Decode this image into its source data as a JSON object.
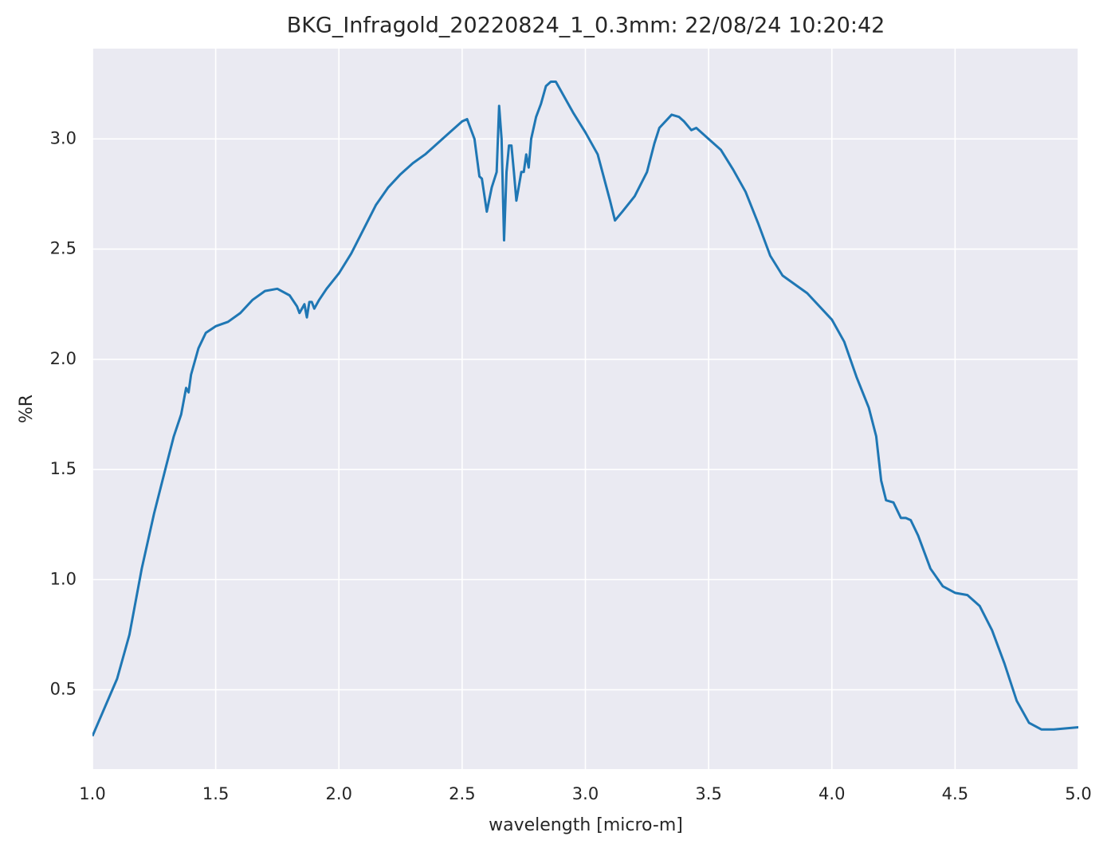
{
  "chart_data": {
    "type": "line",
    "title": "BKG_Infragold_20220824_1_0.3mm:  22/08/24 10:20:42",
    "xlabel": "wavelength [micro-m]",
    "ylabel": "%R",
    "color": "#1f77b4",
    "grid": true,
    "xlim": [
      1.0,
      5.0
    ],
    "ylim": [
      0.14,
      3.41
    ],
    "xticks": [
      {
        "value": 1,
        "label": "1.0"
      },
      1.5,
      {
        "value": 2,
        "label": "2.0"
      },
      2.5,
      {
        "value": 3,
        "label": "3.0"
      },
      3.5,
      {
        "value": 4,
        "label": "4.0"
      },
      4.5,
      {
        "value": 5,
        "label": "5.0"
      }
    ],
    "yticks": [
      0.5,
      {
        "value": 1,
        "label": "1.0"
      },
      1.5,
      {
        "value": 2,
        "label": "2.0"
      },
      2.5,
      {
        "value": 3,
        "label": "3.0"
      }
    ],
    "x": [
      1.0,
      1.05,
      1.1,
      1.15,
      1.2,
      1.25,
      1.3,
      1.33,
      1.36,
      1.38,
      1.39,
      1.4,
      1.43,
      1.46,
      1.5,
      1.55,
      1.6,
      1.65,
      1.7,
      1.75,
      1.8,
      1.83,
      1.84,
      1.86,
      1.87,
      1.88,
      1.89,
      1.9,
      1.92,
      1.95,
      2.0,
      2.05,
      2.1,
      2.15,
      2.2,
      2.25,
      2.3,
      2.35,
      2.4,
      2.45,
      2.5,
      2.52,
      2.55,
      2.57,
      2.58,
      2.6,
      2.62,
      2.64,
      2.65,
      2.66,
      2.67,
      2.68,
      2.69,
      2.7,
      2.71,
      2.72,
      2.74,
      2.75,
      2.76,
      2.77,
      2.78,
      2.8,
      2.82,
      2.84,
      2.86,
      2.88,
      2.9,
      2.95,
      3.0,
      3.05,
      3.1,
      3.12,
      3.15,
      3.2,
      3.25,
      3.28,
      3.3,
      3.35,
      3.38,
      3.4,
      3.43,
      3.45,
      3.5,
      3.55,
      3.6,
      3.65,
      3.7,
      3.75,
      3.8,
      3.9,
      4.0,
      4.05,
      4.1,
      4.15,
      4.18,
      4.2,
      4.22,
      4.25,
      4.28,
      4.3,
      4.32,
      4.35,
      4.4,
      4.45,
      4.5,
      4.55,
      4.6,
      4.65,
      4.7,
      4.75,
      4.8,
      4.85,
      4.9,
      5.0
    ],
    "values": [
      0.29,
      0.42,
      0.55,
      0.75,
      1.05,
      1.3,
      1.52,
      1.65,
      1.75,
      1.87,
      1.85,
      1.93,
      2.05,
      2.12,
      2.15,
      2.17,
      2.21,
      2.27,
      2.31,
      2.32,
      2.29,
      2.24,
      2.21,
      2.25,
      2.19,
      2.26,
      2.26,
      2.23,
      2.27,
      2.32,
      2.39,
      2.48,
      2.59,
      2.7,
      2.78,
      2.84,
      2.89,
      2.93,
      2.98,
      3.03,
      3.08,
      3.09,
      3.0,
      2.83,
      2.82,
      2.67,
      2.78,
      2.85,
      3.15,
      3.0,
      2.54,
      2.85,
      2.97,
      2.97,
      2.85,
      2.72,
      2.85,
      2.85,
      2.93,
      2.87,
      3.0,
      3.1,
      3.16,
      3.24,
      3.26,
      3.26,
      3.22,
      3.12,
      3.03,
      2.93,
      2.72,
      2.63,
      2.67,
      2.74,
      2.85,
      2.98,
      3.05,
      3.11,
      3.1,
      3.08,
      3.04,
      3.05,
      3.0,
      2.95,
      2.86,
      2.76,
      2.62,
      2.47,
      2.38,
      2.3,
      2.18,
      2.08,
      1.92,
      1.78,
      1.65,
      1.45,
      1.36,
      1.35,
      1.28,
      1.28,
      1.27,
      1.2,
      1.05,
      0.97,
      0.94,
      0.93,
      0.88,
      0.77,
      0.62,
      0.45,
      0.35,
      0.32,
      0.32,
      0.33
    ]
  }
}
